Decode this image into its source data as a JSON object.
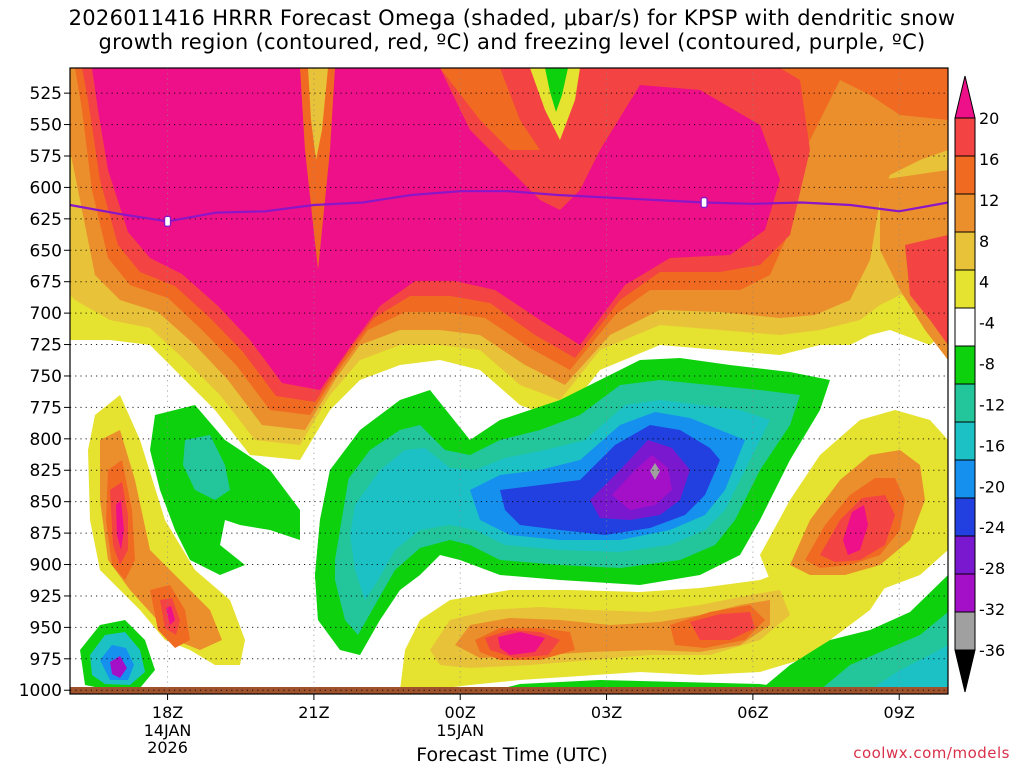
{
  "title": {
    "line1": "2026011416 HRRR Forecast Omega (shaded, μbar/s) for KPSP with dendritic snow",
    "line2": "growth region (contoured, red, ºC) and freezing level (contoured, purple, ºC)"
  },
  "credit": "coolwx.com/models",
  "chart_data": {
    "type": "heatmap",
    "title": "2026011416 HRRR Forecast Omega (shaded, μbar/s) for KPSP with dendritic snow growth region (contoured, red, ºC) and freezing level (contoured, purple, ºC)",
    "xlabel": "Forecast Time (UTC)",
    "ylabel": "",
    "x_ticks": [
      {
        "label": "18Z",
        "sub": [
          "14JAN",
          "2026"
        ],
        "hour": 18
      },
      {
        "label": "21Z",
        "sub": [],
        "hour": 21
      },
      {
        "label": "00Z",
        "sub": [
          "15JAN"
        ],
        "hour": 24
      },
      {
        "label": "03Z",
        "sub": [],
        "hour": 27
      },
      {
        "label": "06Z",
        "sub": [],
        "hour": 30
      },
      {
        "label": "09Z",
        "sub": [],
        "hour": 33
      }
    ],
    "x_range_hours": [
      16,
      34
    ],
    "y_ticks": [
      525,
      550,
      575,
      600,
      625,
      650,
      675,
      700,
      725,
      750,
      775,
      800,
      825,
      850,
      875,
      900,
      925,
      950,
      975,
      1000
    ],
    "y_range_mb": [
      505,
      1003
    ],
    "grid": true,
    "colorbar": {
      "labels": [
        "20",
        "16",
        "12",
        "8",
        "4",
        "-4",
        "-8",
        "-12",
        "-16",
        "-20",
        "-24",
        "-28",
        "-32",
        "-36"
      ],
      "bins": [
        {
          "range": "≥20",
          "color": "#ee1088"
        },
        {
          "range": "16–20",
          "color": "#f34343"
        },
        {
          "range": "12–16",
          "color": "#f16a22"
        },
        {
          "range": "8–12",
          "color": "#eb8f2c"
        },
        {
          "range": "4–8",
          "color": "#e8c238"
        },
        {
          "range": "0–4",
          "color": "#e6e230"
        },
        {
          "range": "-4–4",
          "color": "#ffffff"
        },
        {
          "range": "-8–-4",
          "color": "#0ed10e"
        },
        {
          "range": "-12–-8",
          "color": "#22c69a"
        },
        {
          "range": "-16–-12",
          "color": "#1cc1c6"
        },
        {
          "range": "-20–-16",
          "color": "#1690ee"
        },
        {
          "range": "-24–-20",
          "color": "#2240e0"
        },
        {
          "range": "-28–-24",
          "color": "#7a18d0"
        },
        {
          "range": "-32–-28",
          "color": "#a410c8"
        },
        {
          "range": "-36–-32",
          "color": "#a0a0a0"
        },
        {
          "range": "≤-36",
          "color": "#000000"
        }
      ]
    },
    "freezing_level": {
      "color": "#8a16c8",
      "points": [
        [
          16.0,
          614
        ],
        [
          17.0,
          621
        ],
        [
          18.0,
          627
        ],
        [
          19.0,
          620
        ],
        [
          20.0,
          619
        ],
        [
          21.0,
          614
        ],
        [
          22.0,
          612
        ],
        [
          23.0,
          606
        ],
        [
          24.0,
          603
        ],
        [
          25.0,
          603
        ],
        [
          26.0,
          606
        ],
        [
          27.0,
          608
        ],
        [
          28.0,
          610
        ],
        [
          29.0,
          612
        ],
        [
          30.0,
          613
        ],
        [
          31.0,
          612
        ],
        [
          32.0,
          614
        ],
        [
          33.0,
          619
        ],
        [
          34.0,
          612
        ]
      ],
      "labels": [
        [
          18.0,
          627
        ],
        [
          29.0,
          612
        ]
      ]
    },
    "ground_color": "#a0522d"
  }
}
